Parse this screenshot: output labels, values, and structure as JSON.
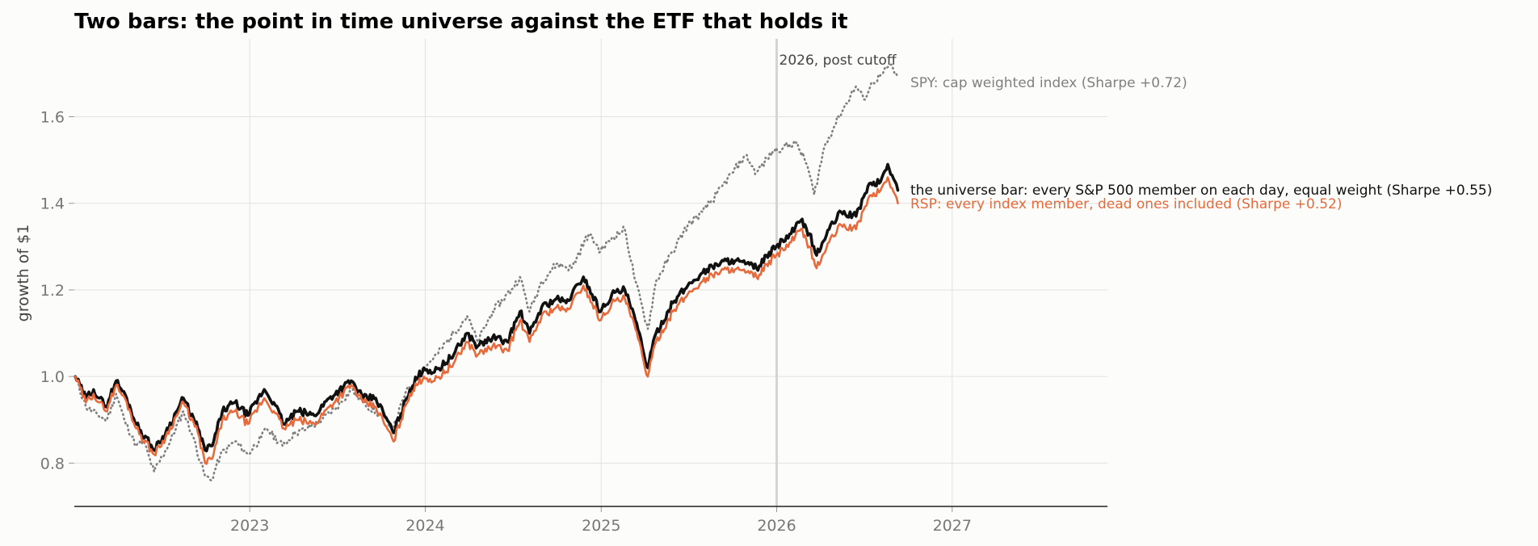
{
  "chart_data": {
    "type": "line",
    "title": "Two bars: the point in time universe against the ETF that holds it",
    "xlabel": "",
    "ylabel": "growth of $1",
    "xlim": [
      "2022-01-01",
      "2027-11-20"
    ],
    "ylim": [
      0.7,
      1.78
    ],
    "x_ticks": [
      "2023",
      "2024",
      "2025",
      "2026",
      "2027"
    ],
    "y_ticks": [
      "0.8",
      "1.0",
      "1.2",
      "1.4",
      "1.6"
    ],
    "grid": true,
    "cutoff": {
      "date": "2026-01-01",
      "label": "2026, post cutoff"
    },
    "series": [
      {
        "key": "spy",
        "label": "SPY: cap weighted index  (Sharpe +0.72)",
        "color": "#808080",
        "style": "dotted",
        "points": [
          [
            "2022-01-03",
            1.0
          ],
          [
            "2022-01-25",
            0.93
          ],
          [
            "2022-02-20",
            0.91
          ],
          [
            "2022-03-10",
            0.9
          ],
          [
            "2022-03-29",
            0.96
          ],
          [
            "2022-04-15",
            0.9
          ],
          [
            "2022-05-10",
            0.84
          ],
          [
            "2022-05-25",
            0.85
          ],
          [
            "2022-06-16",
            0.78
          ],
          [
            "2022-07-15",
            0.84
          ],
          [
            "2022-08-16",
            0.92
          ],
          [
            "2022-09-05",
            0.86
          ],
          [
            "2022-09-30",
            0.77
          ],
          [
            "2022-10-13",
            0.76
          ],
          [
            "2022-11-01",
            0.82
          ],
          [
            "2022-12-01",
            0.85
          ],
          [
            "2022-12-28",
            0.82
          ],
          [
            "2023-01-25",
            0.86
          ],
          [
            "2023-02-05",
            0.88
          ],
          [
            "2023-03-10",
            0.84
          ],
          [
            "2023-04-05",
            0.87
          ],
          [
            "2023-05-01",
            0.88
          ],
          [
            "2023-06-01",
            0.9
          ],
          [
            "2023-07-01",
            0.93
          ],
          [
            "2023-07-31",
            0.97
          ],
          [
            "2023-08-25",
            0.94
          ],
          [
            "2023-09-30",
            0.91
          ],
          [
            "2023-10-27",
            0.88
          ],
          [
            "2023-11-20",
            0.96
          ],
          [
            "2023-12-29",
            1.02
          ],
          [
            "2024-01-25",
            1.05
          ],
          [
            "2024-02-29",
            1.1
          ],
          [
            "2024-03-28",
            1.14
          ],
          [
            "2024-04-19",
            1.08
          ],
          [
            "2024-05-20",
            1.15
          ],
          [
            "2024-06-28",
            1.2
          ],
          [
            "2024-07-16",
            1.23
          ],
          [
            "2024-08-05",
            1.15
          ],
          [
            "2024-08-30",
            1.22
          ],
          [
            "2024-09-30",
            1.26
          ],
          [
            "2024-10-31",
            1.25
          ],
          [
            "2024-12-06",
            1.33
          ],
          [
            "2024-12-31",
            1.29
          ],
          [
            "2025-01-23",
            1.32
          ],
          [
            "2025-02-19",
            1.34
          ],
          [
            "2025-03-13",
            1.22
          ],
          [
            "2025-04-08",
            1.11
          ],
          [
            "2025-04-25",
            1.22
          ],
          [
            "2025-05-30",
            1.29
          ],
          [
            "2025-06-30",
            1.35
          ],
          [
            "2025-07-31",
            1.38
          ],
          [
            "2025-08-29",
            1.42
          ],
          [
            "2025-09-30",
            1.47
          ],
          [
            "2025-10-28",
            1.51
          ],
          [
            "2025-11-20",
            1.47
          ],
          [
            "2025-12-24",
            1.52
          ],
          [
            "2026-01-15",
            1.53
          ],
          [
            "2026-02-10",
            1.54
          ],
          [
            "2026-03-05",
            1.49
          ],
          [
            "2026-03-20",
            1.42
          ],
          [
            "2026-04-10",
            1.53
          ],
          [
            "2026-05-10",
            1.6
          ],
          [
            "2026-06-15",
            1.67
          ],
          [
            "2026-07-01",
            1.64
          ],
          [
            "2026-07-20",
            1.68
          ],
          [
            "2026-08-10",
            1.7
          ],
          [
            "2026-08-25",
            1.72
          ],
          [
            "2026-09-10",
            1.69
          ]
        ]
      },
      {
        "key": "universe",
        "label": "the universe bar: every S&P 500 member on each day, equal weight  (Sharpe +0.55)",
        "color": "#111111",
        "style": "solid",
        "points": [
          [
            "2022-01-03",
            1.0
          ],
          [
            "2022-01-25",
            0.95
          ],
          [
            "2022-02-10",
            0.97
          ],
          [
            "2022-03-07",
            0.93
          ],
          [
            "2022-03-29",
            0.99
          ],
          [
            "2022-04-20",
            0.95
          ],
          [
            "2022-05-10",
            0.89
          ],
          [
            "2022-06-16",
            0.83
          ],
          [
            "2022-07-10",
            0.87
          ],
          [
            "2022-08-16",
            0.95
          ],
          [
            "2022-09-15",
            0.88
          ],
          [
            "2022-09-30",
            0.83
          ],
          [
            "2022-10-15",
            0.84
          ],
          [
            "2022-11-05",
            0.92
          ],
          [
            "2022-12-01",
            0.94
          ],
          [
            "2022-12-28",
            0.91
          ],
          [
            "2023-01-31",
            0.97
          ],
          [
            "2023-02-20",
            0.94
          ],
          [
            "2023-03-13",
            0.89
          ],
          [
            "2023-04-10",
            0.92
          ],
          [
            "2023-05-15",
            0.91
          ],
          [
            "2023-06-15",
            0.95
          ],
          [
            "2023-07-31",
            0.99
          ],
          [
            "2023-08-25",
            0.95
          ],
          [
            "2023-09-20",
            0.95
          ],
          [
            "2023-10-27",
            0.87
          ],
          [
            "2023-11-30",
            0.97
          ],
          [
            "2023-12-29",
            1.02
          ],
          [
            "2024-01-20",
            1.01
          ],
          [
            "2024-02-29",
            1.05
          ],
          [
            "2024-03-28",
            1.1
          ],
          [
            "2024-04-19",
            1.07
          ],
          [
            "2024-05-20",
            1.09
          ],
          [
            "2024-06-20",
            1.08
          ],
          [
            "2024-07-16",
            1.15
          ],
          [
            "2024-08-05",
            1.1
          ],
          [
            "2024-08-30",
            1.16
          ],
          [
            "2024-09-30",
            1.18
          ],
          [
            "2024-10-20",
            1.17
          ],
          [
            "2024-11-25",
            1.23
          ],
          [
            "2024-12-31",
            1.15
          ],
          [
            "2025-01-23",
            1.19
          ],
          [
            "2025-02-19",
            1.2
          ],
          [
            "2025-03-13",
            1.13
          ],
          [
            "2025-04-08",
            1.02
          ],
          [
            "2025-04-25",
            1.1
          ],
          [
            "2025-05-30",
            1.17
          ],
          [
            "2025-06-30",
            1.21
          ],
          [
            "2025-07-31",
            1.24
          ],
          [
            "2025-08-29",
            1.26
          ],
          [
            "2025-09-30",
            1.27
          ],
          [
            "2025-10-28",
            1.26
          ],
          [
            "2025-11-20",
            1.25
          ],
          [
            "2025-12-31",
            1.3
          ],
          [
            "2026-01-31",
            1.33
          ],
          [
            "2026-02-20",
            1.36
          ],
          [
            "2026-03-10",
            1.33
          ],
          [
            "2026-03-25",
            1.28
          ],
          [
            "2026-04-20",
            1.34
          ],
          [
            "2026-05-15",
            1.38
          ],
          [
            "2026-06-15",
            1.37
          ],
          [
            "2026-07-10",
            1.44
          ],
          [
            "2026-08-05",
            1.45
          ],
          [
            "2026-08-20",
            1.49
          ],
          [
            "2026-09-10",
            1.43
          ]
        ]
      },
      {
        "key": "rsp",
        "label": "RSP: every index member, dead ones included  (Sharpe +0.52)",
        "color": "#e8693a",
        "style": "solid",
        "points": [
          [
            "2022-01-03",
            1.0
          ],
          [
            "2022-01-25",
            0.94
          ],
          [
            "2022-02-10",
            0.96
          ],
          [
            "2022-03-07",
            0.92
          ],
          [
            "2022-03-29",
            0.98
          ],
          [
            "2022-04-20",
            0.94
          ],
          [
            "2022-05-10",
            0.88
          ],
          [
            "2022-06-16",
            0.82
          ],
          [
            "2022-07-10",
            0.86
          ],
          [
            "2022-08-16",
            0.94
          ],
          [
            "2022-09-15",
            0.87
          ],
          [
            "2022-09-30",
            0.8
          ],
          [
            "2022-10-15",
            0.81
          ],
          [
            "2022-11-05",
            0.9
          ],
          [
            "2022-12-01",
            0.92
          ],
          [
            "2022-12-28",
            0.89
          ],
          [
            "2023-01-31",
            0.95
          ],
          [
            "2023-02-20",
            0.92
          ],
          [
            "2023-03-13",
            0.88
          ],
          [
            "2023-04-10",
            0.9
          ],
          [
            "2023-05-15",
            0.89
          ],
          [
            "2023-06-15",
            0.93
          ],
          [
            "2023-07-31",
            0.98
          ],
          [
            "2023-08-25",
            0.94
          ],
          [
            "2023-09-20",
            0.93
          ],
          [
            "2023-10-27",
            0.85
          ],
          [
            "2023-11-30",
            0.96
          ],
          [
            "2023-12-29",
            1.0
          ],
          [
            "2024-01-20",
            0.99
          ],
          [
            "2024-02-29",
            1.03
          ],
          [
            "2024-03-28",
            1.08
          ],
          [
            "2024-04-19",
            1.05
          ],
          [
            "2024-05-20",
            1.07
          ],
          [
            "2024-06-20",
            1.06
          ],
          [
            "2024-07-16",
            1.13
          ],
          [
            "2024-08-05",
            1.08
          ],
          [
            "2024-08-30",
            1.14
          ],
          [
            "2024-09-30",
            1.16
          ],
          [
            "2024-10-20",
            1.15
          ],
          [
            "2024-11-25",
            1.21
          ],
          [
            "2024-12-31",
            1.13
          ],
          [
            "2025-01-23",
            1.17
          ],
          [
            "2025-02-19",
            1.18
          ],
          [
            "2025-03-13",
            1.11
          ],
          [
            "2025-04-08",
            1.0
          ],
          [
            "2025-04-25",
            1.08
          ],
          [
            "2025-05-30",
            1.15
          ],
          [
            "2025-06-30",
            1.19
          ],
          [
            "2025-07-31",
            1.22
          ],
          [
            "2025-08-29",
            1.24
          ],
          [
            "2025-09-30",
            1.25
          ],
          [
            "2025-10-28",
            1.24
          ],
          [
            "2025-11-20",
            1.23
          ],
          [
            "2025-12-31",
            1.28
          ],
          [
            "2026-01-31",
            1.31
          ],
          [
            "2026-02-20",
            1.34
          ],
          [
            "2026-03-10",
            1.3
          ],
          [
            "2026-03-25",
            1.25
          ],
          [
            "2026-04-20",
            1.31
          ],
          [
            "2026-05-15",
            1.35
          ],
          [
            "2026-06-15",
            1.34
          ],
          [
            "2026-07-10",
            1.41
          ],
          [
            "2026-08-05",
            1.43
          ],
          [
            "2026-08-20",
            1.46
          ],
          [
            "2026-09-10",
            1.4
          ]
        ]
      }
    ]
  }
}
